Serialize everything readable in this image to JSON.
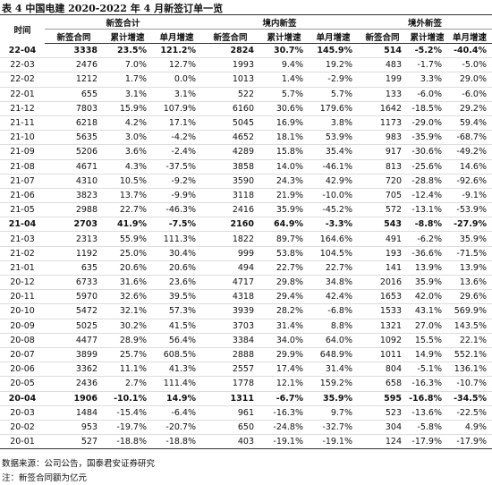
{
  "title": "表 4 中国电建 2020-2022 年 4 月新签订单一览",
  "table": {
    "header_groups": [
      "时间",
      "新签合计",
      "境内新签",
      "境外新签"
    ],
    "subheaders": [
      "新签合同",
      "累计增速",
      "单月增速",
      "新签合同",
      "累计增速",
      "单月增速",
      "新签合同",
      "累计增速",
      "单月增速"
    ],
    "rows": [
      [
        "22-04",
        "3338",
        "23.5%",
        "121.2%",
        "2824",
        "30.7%",
        "145.9%",
        "514",
        "-5.2%",
        "-40.4%"
      ],
      [
        "22-03",
        "2476",
        "7.0%",
        "12.7%",
        "1993",
        "9.4%",
        "19.2%",
        "483",
        "-1.7%",
        "-5.0%"
      ],
      [
        "22-02",
        "1212",
        "1.7%",
        "0.0%",
        "1013",
        "1.4%",
        "-2.9%",
        "199",
        "3.3%",
        "29.0%"
      ],
      [
        "22-01",
        "655",
        "3.1%",
        "3.1%",
        "522",
        "5.7%",
        "5.7%",
        "133",
        "-6.0%",
        "-6.0%"
      ],
      [
        "21-12",
        "7803",
        "15.9%",
        "107.9%",
        "6160",
        "30.6%",
        "179.6%",
        "1642",
        "-18.5%",
        "29.2%"
      ],
      [
        "21-11",
        "6218",
        "4.2%",
        "17.1%",
        "5045",
        "16.9%",
        "3.8%",
        "1173",
        "-29.0%",
        "59.4%"
      ],
      [
        "21-10",
        "5635",
        "3.0%",
        "-4.2%",
        "4652",
        "18.1%",
        "53.9%",
        "983",
        "-35.9%",
        "-68.7%"
      ],
      [
        "21-09",
        "5206",
        "3.6%",
        "-2.4%",
        "4289",
        "15.8%",
        "35.4%",
        "917",
        "-30.6%",
        "-49.2%"
      ],
      [
        "21-08",
        "4671",
        "4.3%",
        "-37.5%",
        "3858",
        "14.0%",
        "-46.1%",
        "813",
        "-25.6%",
        "14.6%"
      ],
      [
        "21-07",
        "4310",
        "10.5%",
        "-9.2%",
        "3590",
        "24.3%",
        "42.9%",
        "720",
        "-28.8%",
        "-92.6%"
      ],
      [
        "21-06",
        "3823",
        "13.7%",
        "-9.9%",
        "3118",
        "21.9%",
        "-10.0%",
        "705",
        "-12.4%",
        "-9.1%"
      ],
      [
        "21-05",
        "2988",
        "22.7%",
        "-46.3%",
        "2416",
        "35.9%",
        "-45.2%",
        "572",
        "-13.1%",
        "-53.9%"
      ],
      [
        "21-04",
        "2703",
        "41.9%",
        "-7.5%",
        "2160",
        "64.9%",
        "-3.3%",
        "543",
        "-8.8%",
        "-27.9%"
      ],
      [
        "21-03",
        "2313",
        "55.9%",
        "111.3%",
        "1822",
        "89.7%",
        "164.6%",
        "491",
        "-6.2%",
        "35.9%"
      ],
      [
        "21-02",
        "1192",
        "25.0%",
        "30.4%",
        "999",
        "53.8%",
        "104.5%",
        "193",
        "-36.6%",
        "-71.5%"
      ],
      [
        "21-01",
        "635",
        "20.6%",
        "20.6%",
        "494",
        "22.7%",
        "22.7%",
        "141",
        "13.9%",
        "13.9%"
      ],
      [
        "20-12",
        "6733",
        "31.6%",
        "23.6%",
        "4717",
        "29.8%",
        "34.8%",
        "2016",
        "35.9%",
        "13.6%"
      ],
      [
        "20-11",
        "5970",
        "32.6%",
        "39.5%",
        "4318",
        "29.4%",
        "42.4%",
        "1653",
        "42.0%",
        "29.6%"
      ],
      [
        "20-10",
        "5472",
        "32.1%",
        "57.3%",
        "3939",
        "28.2%",
        "-6.8%",
        "1533",
        "43.1%",
        "569.9%"
      ],
      [
        "20-09",
        "5025",
        "30.2%",
        "41.5%",
        "3703",
        "31.4%",
        "8.8%",
        "1321",
        "27.0%",
        "143.5%"
      ],
      [
        "20-08",
        "4477",
        "28.9%",
        "56.4%",
        "3384",
        "34.0%",
        "64.0%",
        "1092",
        "15.5%",
        "22.1%"
      ],
      [
        "20-07",
        "3899",
        "25.7%",
        "608.5%",
        "2888",
        "29.9%",
        "648.9%",
        "1011",
        "14.9%",
        "552.1%"
      ],
      [
        "20-06",
        "3362",
        "11.1%",
        "41.3%",
        "2557",
        "17.4%",
        "31.4%",
        "804",
        "-5.1%",
        "136.1%"
      ],
      [
        "20-05",
        "2436",
        "2.7%",
        "111.4%",
        "1778",
        "12.1%",
        "159.2%",
        "658",
        "-16.3%",
        "-10.7%"
      ],
      [
        "20-04",
        "1906",
        "-10.1%",
        "14.9%",
        "1311",
        "-6.7%",
        "35.9%",
        "595",
        "-16.8%",
        "-34.5%"
      ],
      [
        "20-03",
        "1484",
        "-15.4%",
        "-6.4%",
        "961",
        "-16.3%",
        "9.7%",
        "523",
        "-13.6%",
        "-22.5%"
      ],
      [
        "20-02",
        "953",
        "-19.7%",
        "-20.7%",
        "650",
        "-24.8%",
        "-32.7%",
        "304",
        "-5.8%",
        "4.9%"
      ],
      [
        "20-01",
        "527",
        "-18.8%",
        "-18.8%",
        "403",
        "-19.1%",
        "-19.1%",
        "124",
        "-17.9%",
        "-17.9%"
      ]
    ]
  },
  "source": "数据来源：公司公告，国泰君安证券研究",
  "note": "注：新签合同额为亿元"
}
